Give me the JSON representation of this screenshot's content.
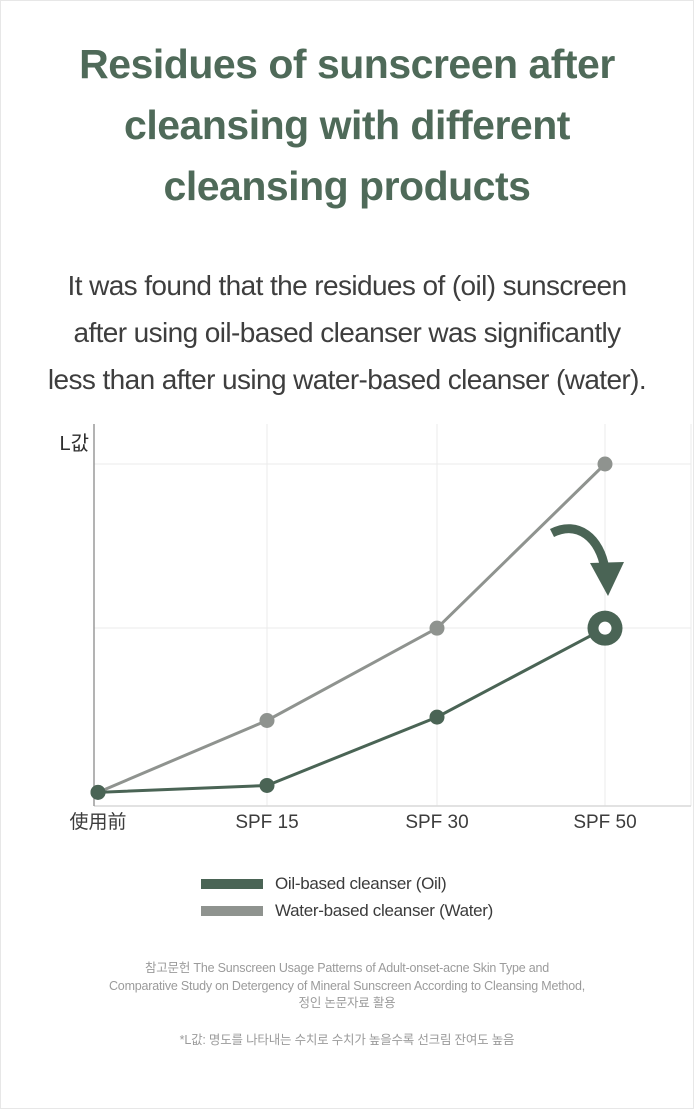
{
  "title": {
    "lines": [
      "Residues of sunscreen after",
      "cleansing with different",
      "cleansing products"
    ]
  },
  "subtitle": {
    "lines": [
      "It was found that the residues of (oil) sunscreen",
      "after using oil-based cleanser was significantly",
      "less than after using water-based cleanser (water)."
    ]
  },
  "chart_data": {
    "type": "line",
    "title": "",
    "xlabel": "",
    "ylabel": "L값",
    "categories": [
      "使用前",
      "SPF 15",
      "SPF 30",
      "SPF 50"
    ],
    "series": [
      {
        "name": "Oil-based cleanser (Oil)",
        "color": "#4a6455",
        "values": [
          4,
          6,
          26,
          52
        ],
        "highlight_last": true
      },
      {
        "name": "Water-based cleanser (Water)",
        "color": "#8f938f",
        "values": [
          4,
          25,
          52,
          100
        ],
        "highlight_last": false
      }
    ],
    "ylim": [
      0,
      105
    ],
    "grid": true,
    "axis_ticks_numeric": false,
    "legend_position": "below-chart",
    "annotation": "curved arrow pointing down at the Oil series SPF 50 point (ring marker)"
  },
  "legend": {
    "items": [
      {
        "label": "Oil-based cleanser (Oil)",
        "color": "#4a6455"
      },
      {
        "label": "Water-based cleanser (Water)",
        "color": "#8f938f"
      }
    ]
  },
  "footer": {
    "reference_lines": [
      "참고문헌 The Sunscreen Usage Patterns of Adult-onset-acne Skin Type and",
      "Comparative Study on Detergency of Mineral Sunscreen According to Cleansing Method,",
      "정인 논문자료 활용"
    ],
    "footnote": "*L값: 명도를 나타내는 수치로 수치가 높을수록 선크림 잔여도 높음"
  },
  "colors": {
    "title": "#4f6a59",
    "body_text": "#3e3e3e",
    "muted_text": "#9b9b9b",
    "accent_green": "#4a6455",
    "gray_line": "#8f938f",
    "grid_line": "#ebebeb",
    "axis_line": "#9a9a9a",
    "baseline": "#d9d9d9"
  }
}
